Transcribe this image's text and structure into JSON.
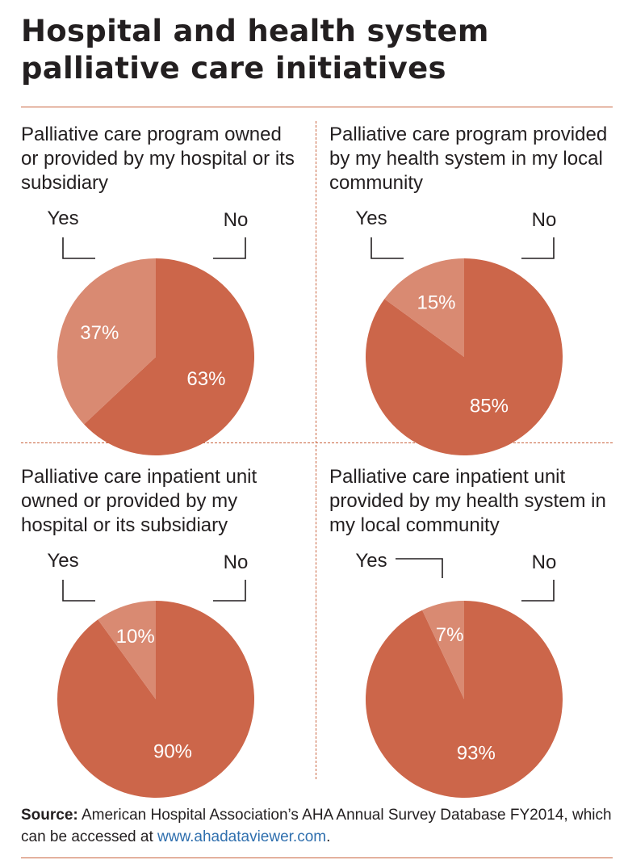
{
  "title": "Hospital and health system palliative care initiatives",
  "colors": {
    "no": "#cc664a",
    "yes": "#d98a72",
    "rule": "#c9643f",
    "link": "#2f6fae"
  },
  "chart_data": [
    {
      "type": "pie",
      "title": "Palliative care program owned or provided by my hospital or its subsidiary",
      "categories": [
        "Yes",
        "No"
      ],
      "values": [
        37,
        63
      ],
      "value_labels": [
        "37%",
        "63%"
      ]
    },
    {
      "type": "pie",
      "title": "Palliative care program provided by my health system in my local community",
      "categories": [
        "Yes",
        "No"
      ],
      "values": [
        15,
        85
      ],
      "value_labels": [
        "15%",
        "85%"
      ]
    },
    {
      "type": "pie",
      "title": "Palliative care inpatient unit owned or provided by my hospital or its subsidiary",
      "categories": [
        "Yes",
        "No"
      ],
      "values": [
        10,
        90
      ],
      "value_labels": [
        "10%",
        "90%"
      ]
    },
    {
      "type": "pie",
      "title": "Palliative care inpatient unit provided by my health system in my local community",
      "categories": [
        "Yes",
        "No"
      ],
      "values": [
        7,
        93
      ],
      "value_labels": [
        "7%",
        "93%"
      ]
    }
  ],
  "source": {
    "label": "Source:",
    "text": "American Hospital Association’s AHA Annual Survey Database FY2014, which can be accessed at",
    "link": "www.ahadataviewer.com",
    "end": "."
  }
}
